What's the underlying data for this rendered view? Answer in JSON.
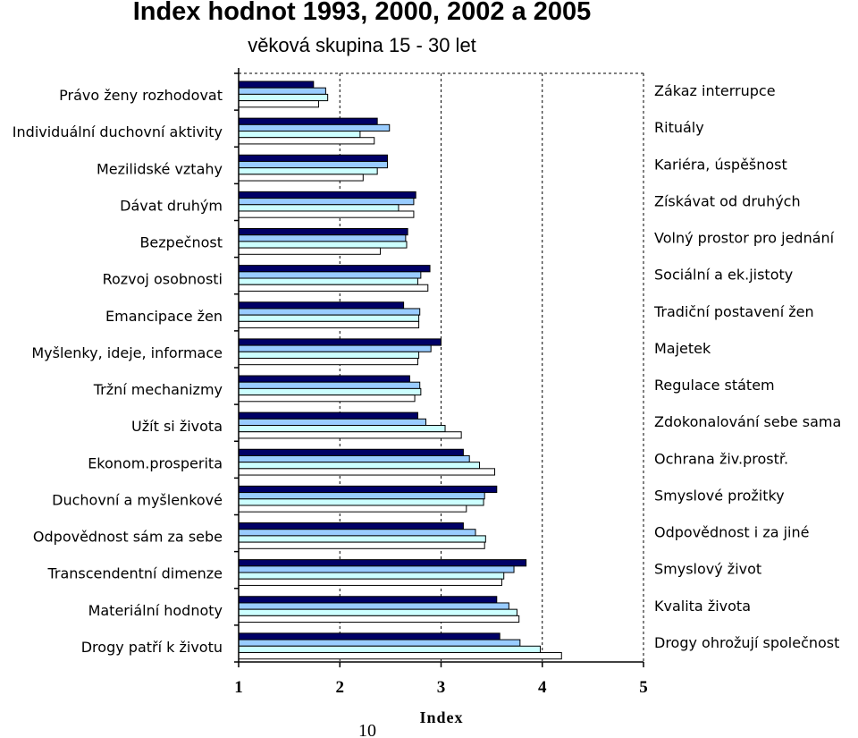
{
  "page_number": "10",
  "chart_data": {
    "type": "bar",
    "orientation": "horizontal",
    "title": "Index hodnot 1993, 2000, 2002 a 2005",
    "subtitle": "věková skupina 15 - 30 let",
    "xlabel": "Index",
    "xlim": [
      1,
      5
    ],
    "xticks": [
      "1",
      "2",
      "3",
      "4",
      "5"
    ],
    "grid": "vertical dashed",
    "categories_left": [
      "Právo ženy rozhodovat",
      "Individuální duchovní aktivity",
      "Mezilidské vztahy",
      "Dávat druhým",
      "Bezpečnost",
      "Rozvoj osobnosti",
      "Emancipace žen",
      "Myšlenky, ideje, informace",
      "Tržní mechanizmy",
      "Užít si života",
      "Ekonom.prosperita",
      "Duchovní a myšlenkové",
      "Odpovědnost sám za sebe",
      "Transcendentní dimenze",
      "Materiální hodnoty",
      "Drogy patří k životu"
    ],
    "categories_right": [
      "Zákaz interrupce",
      "Rituály",
      "Kariéra, úspěšnost",
      "Získávat od druhých",
      "Volný prostor pro jednání",
      "Sociální a ek.jistoty",
      "Tradiční postavení žen",
      "Majetek",
      "Regulace státem",
      "Zdokonalování sebe sama",
      "Ochrana živ.prostř.",
      "Smyslové prožitky",
      "Odpovědnost i za jiné",
      "Smyslový život",
      "Kvalita života",
      "Drogy ohrožují společnost"
    ],
    "series": [
      {
        "color": "#000066",
        "values": [
          1.74,
          2.37,
          2.47,
          2.75,
          2.67,
          2.89,
          2.63,
          3.0,
          2.69,
          2.77,
          3.22,
          3.55,
          3.22,
          3.84,
          3.55,
          3.58
        ]
      },
      {
        "color": "#99CCFF",
        "values": [
          1.86,
          2.49,
          2.47,
          2.73,
          2.65,
          2.8,
          2.79,
          2.9,
          2.79,
          2.85,
          3.28,
          3.43,
          3.34,
          3.72,
          3.67,
          3.78
        ]
      },
      {
        "color": "#CCFFFF",
        "values": [
          1.88,
          2.2,
          2.37,
          2.58,
          2.66,
          2.77,
          2.78,
          2.78,
          2.8,
          3.04,
          3.38,
          3.42,
          3.44,
          3.62,
          3.75,
          3.98
        ]
      },
      {
        "color": "#FFFFFF",
        "values": [
          1.79,
          2.34,
          2.23,
          2.73,
          2.4,
          2.87,
          2.78,
          2.77,
          2.74,
          3.2,
          3.53,
          3.25,
          3.43,
          3.6,
          3.77,
          4.19
        ]
      }
    ]
  }
}
